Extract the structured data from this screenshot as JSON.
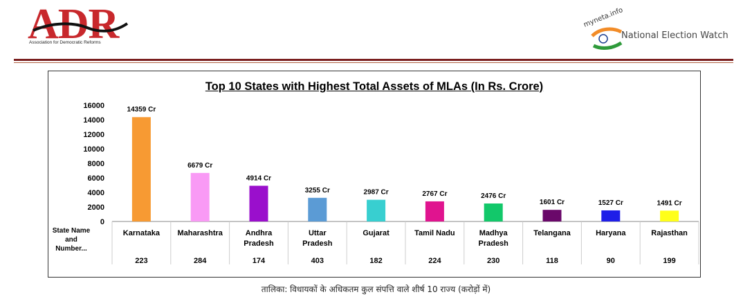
{
  "header": {
    "adr_logo_text": "ADR",
    "adr_tagline": "Association for Democratic Reforms",
    "myneta_text": "myneta.info",
    "new_text": "National Election Watch"
  },
  "chart_data": {
    "type": "bar",
    "title": "Top 10 States with Highest Total Assets of MLAs (In Rs. Crore)",
    "categories": [
      "Karnataka",
      "Maharashtra",
      "Andhra Pradesh",
      "Uttar Pradesh",
      "Gujarat",
      "Tamil Nadu",
      "Madhya Pradesh",
      "Telangana",
      "Haryana",
      "Rajasthan"
    ],
    "values": [
      14359,
      6679,
      4914,
      3255,
      2987,
      2767,
      2476,
      1601,
      1527,
      1491
    ],
    "data_labels": [
      "14359 Cr",
      "6679 Cr",
      "4914 Cr",
      "3255 Cr",
      "2987 Cr",
      "2767 Cr",
      "2476 Cr",
      "1601 Cr",
      "1527 Cr",
      "1491 Cr"
    ],
    "mla_counts": [
      "223",
      "284",
      "174",
      "403",
      "182",
      "224",
      "230",
      "118",
      "90",
      "199"
    ],
    "row_header": "State Name and Number...",
    "bar_colors": [
      "#f79a33",
      "#f99af5",
      "#9a0fcc",
      "#5b9bd5",
      "#38cfd0",
      "#e0148f",
      "#12c86a",
      "#6a086a",
      "#1f1fe8",
      "#ffff1a"
    ],
    "ylim": [
      0,
      16000
    ],
    "yticks": [
      0,
      2000,
      4000,
      6000,
      8000,
      10000,
      12000,
      14000,
      16000
    ],
    "xlabel": "",
    "ylabel": ""
  },
  "caption": "तालिका: विधायकों के अधिकतम कुल संपत्ति वाले शीर्ष 10 राज्य (करोड़ों में)"
}
